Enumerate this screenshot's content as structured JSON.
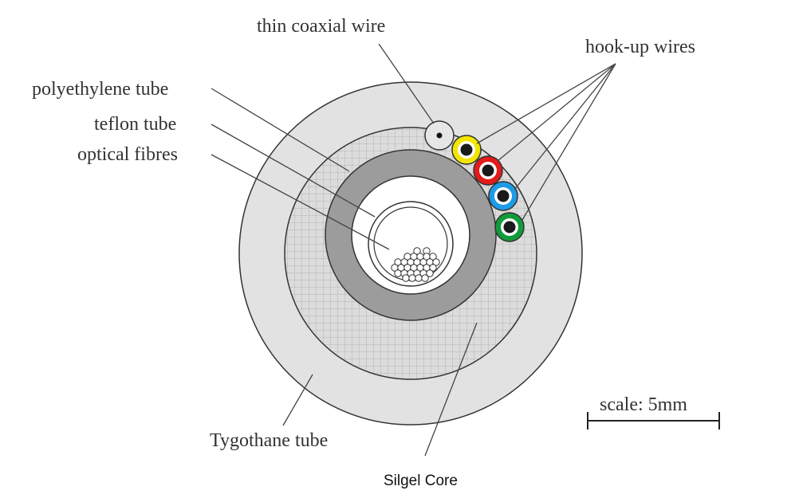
{
  "labels": {
    "coax": "thin coaxial wire",
    "hookup": "hook-up wires",
    "poly": "polyethylene tube",
    "teflon": "teflon tube",
    "optical": "optical fibres",
    "tygothane": "Tygothane tube",
    "scale": "scale: 5mm"
  },
  "caption": "Silgel Core",
  "colors": {
    "tygothane_fill": "#e2e2e2",
    "silgel_fill": "#dcdcdc",
    "poly_fill": "#9c9c9c",
    "coax_fill": "#e6e6e6",
    "outline": "#333333",
    "hookup_wires": [
      "#f2e600",
      "#e21b1b",
      "#1e9be6",
      "#119b3a"
    ]
  },
  "icons": {
    "hookup_wire_core": "black-dot",
    "optical_fibre": "small-circle"
  }
}
